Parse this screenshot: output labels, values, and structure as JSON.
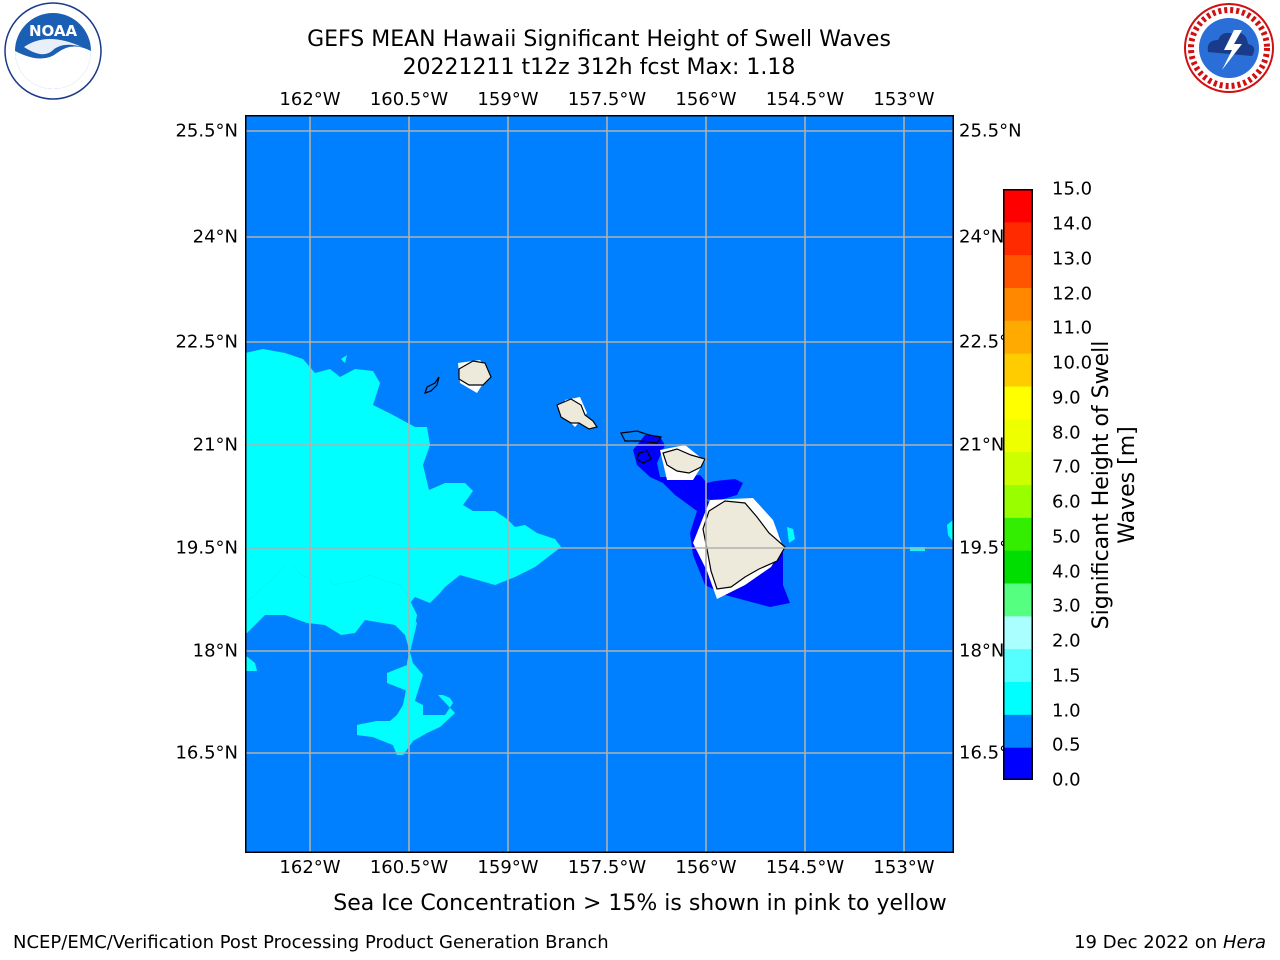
{
  "header": {
    "title_line1": "GEFS MEAN Hawaii Significant Height of Swell Waves",
    "title_line2": "20221211 t12z 312h fcst   Max: 1.18"
  },
  "logos": {
    "noaa": {
      "text": "NOAA",
      "ring_text": "NATIONAL OCEANIC AND ATMOSPHERIC ADMINISTRATION · U.S. DEPARTMENT OF COMMERCE"
    },
    "nws": {
      "ring_text": "NATIONAL WEATHER SERVICE"
    }
  },
  "map": {
    "lon_ticks": [
      "162°W",
      "160.5°W",
      "159°W",
      "157.5°W",
      "156°W",
      "154.5°W",
      "153°W"
    ],
    "lat_ticks": [
      "25.5°N",
      "24°N",
      "22.5°N",
      "21°N",
      "19.5°N",
      "18°N",
      "16.5°N"
    ],
    "colors": {
      "ocean_default": "#0080ff",
      "swell_1_to_1_5": "#00ffff",
      "swell_0_5_to_less": "#0000ff",
      "land": "#eeeadb",
      "grid": "#b0b0b0"
    }
  },
  "colorbar": {
    "title_line1": "Significant Height of Swell",
    "title_line2": "Waves [m]",
    "tick_labels": [
      "0.0",
      "0.5",
      "1.0",
      "1.5",
      "2.0",
      "3.0",
      "4.0",
      "5.0",
      "6.0",
      "7.0",
      "8.0",
      "9.0",
      "10.0",
      "11.0",
      "12.0",
      "13.0",
      "14.0",
      "15.0"
    ],
    "band_colors": [
      "#0000ff",
      "#0080ff",
      "#00ffff",
      "#55ffff",
      "#aaffff",
      "#55ff80",
      "#00dd00",
      "#33ee00",
      "#99ff00",
      "#ccff00",
      "#eeff00",
      "#ffff00",
      "#ffcc00",
      "#ffaa00",
      "#ff8800",
      "#ff5500",
      "#ff2a00",
      "#ff0000"
    ]
  },
  "note": "Sea Ice Concentration > 15% is shown in pink to yellow",
  "footer": {
    "left": "NCEP/EMC/Verification Post Processing Product Generation Branch",
    "right_date": "19 Dec 2022 on ",
    "right_host": "Hera"
  }
}
